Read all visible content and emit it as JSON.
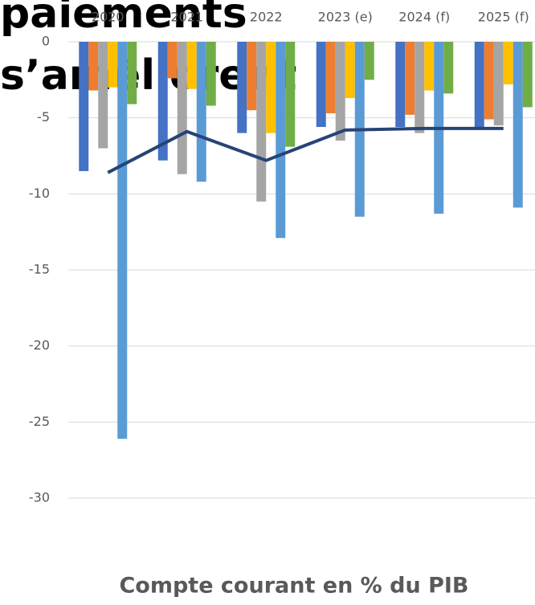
{
  "chart_data": {
    "type": "bar",
    "title": "Compte courant en % du PIB",
    "overlay_text": [
      "paiements",
      "s’améliorent"
    ],
    "categories": [
      "2020",
      "2021",
      "2022",
      "2023 (e)",
      "2024 (f)",
      "2025 (f)"
    ],
    "series": [
      {
        "color": "#4472c4",
        "values": [
          -8.5,
          -7.8,
          -6.0,
          -5.6,
          -5.6,
          -5.6
        ]
      },
      {
        "color": "#ed7d31",
        "values": [
          -3.2,
          -2.4,
          -4.5,
          -4.7,
          -4.8,
          -5.1
        ]
      },
      {
        "color": "#a5a5a5",
        "values": [
          -7.0,
          -8.7,
          -10.5,
          -6.5,
          -6.0,
          -5.5
        ]
      },
      {
        "color": "#ffc000",
        "values": [
          -3.0,
          -3.1,
          -6.0,
          -3.7,
          -3.2,
          -2.8
        ]
      },
      {
        "color": "#5b9bd5",
        "values": [
          -26.1,
          -9.2,
          -12.9,
          -11.5,
          -11.3,
          -10.9
        ]
      },
      {
        "color": "#70ad47",
        "values": [
          -4.1,
          -4.2,
          -6.9,
          -2.5,
          -3.4,
          -4.3
        ]
      },
      {
        "type": "line",
        "color": "#264478",
        "values": [
          -8.6,
          -5.9,
          -7.8,
          -5.8,
          -5.7,
          -5.7
        ]
      }
    ],
    "ylim": [
      -30,
      0
    ],
    "yticks": [
      0,
      -5,
      -10,
      -15,
      -20,
      -25,
      -30
    ],
    "grid": true
  }
}
